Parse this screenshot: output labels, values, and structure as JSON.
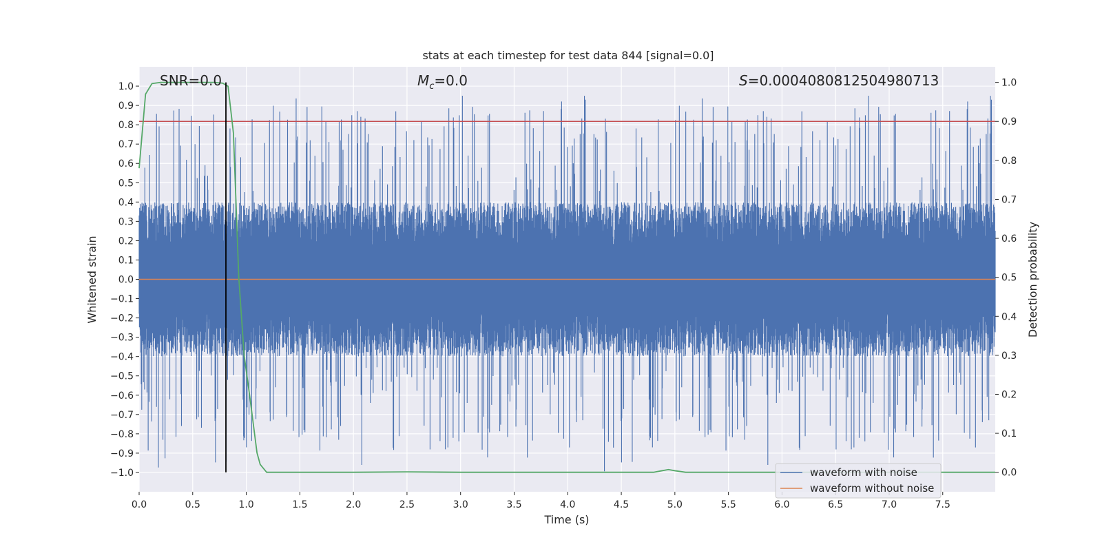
{
  "chart_data": {
    "type": "line",
    "title": "stats at each timestep for test data 844 [signal=0.0]",
    "xlabel": "Time (s)",
    "ylabel": "Whitened strain",
    "y2label": "Detection probability",
    "xlim": [
      0.0,
      7.99
    ],
    "ylim": [
      -1.1,
      1.1
    ],
    "y2lim": [
      -0.05,
      1.04
    ],
    "xticks": [
      0.0,
      0.5,
      1.0,
      1.5,
      2.0,
      2.5,
      3.0,
      3.5,
      4.0,
      4.5,
      5.0,
      5.5,
      6.0,
      6.5,
      7.0,
      7.5
    ],
    "xtick_labels": [
      "0.0",
      "0.5",
      "1.0",
      "1.5",
      "2.0",
      "2.5",
      "3.0",
      "3.5",
      "4.0",
      "4.5",
      "5.0",
      "5.5",
      "6.0",
      "6.5",
      "7.0",
      "7.5"
    ],
    "yticks": [
      1.0,
      0.9,
      0.8,
      0.7,
      0.6,
      0.5,
      0.4,
      0.3,
      0.2,
      0.1,
      0.0,
      -0.1,
      -0.2,
      -0.3,
      -0.4,
      -0.5,
      -0.6,
      -0.7,
      -0.8,
      -0.9,
      -1.0
    ],
    "ytick_labels": [
      "1.0",
      "0.9",
      "0.8",
      "0.7",
      "0.6",
      "0.5",
      "0.4",
      "0.3",
      "0.2",
      "0.1",
      "0.0",
      "−0.1",
      "−0.2",
      "−0.3",
      "−0.4",
      "−0.5",
      "−0.6",
      "−0.7",
      "−0.8",
      "−0.9",
      "−1.0"
    ],
    "y2ticks": [
      1.0,
      0.9,
      0.8,
      0.7,
      0.6,
      0.5,
      0.4,
      0.3,
      0.2,
      0.1,
      0.0
    ],
    "y2tick_labels": [
      "1.0",
      "0.9",
      "0.8",
      "0.7",
      "0.6",
      "0.5",
      "0.4",
      "0.3",
      "0.2",
      "0.1",
      "0.0"
    ],
    "annotations": {
      "snr": "SNR=0.0",
      "mc_symbol": "M",
      "mc_subscript": "c",
      "mc_value": "=0.0",
      "s_symbol": "S",
      "s_value": "=0.0004080812504980713"
    },
    "series": [
      {
        "name": "waveform with noise",
        "color": "#4c72b0",
        "axis": "left",
        "kind": "noise",
        "duration": 7.99,
        "samples": 3600,
        "typical_upper": 0.38,
        "typical_lower": -0.38,
        "peak_max": 0.97,
        "peak_min": -1.0
      },
      {
        "name": "waveform without noise",
        "color": "#dd8452",
        "axis": "left",
        "x": [
          0.0,
          7.99
        ],
        "y": [
          0.0,
          0.0
        ]
      },
      {
        "name": "detection probability",
        "color": "#55a868",
        "axis": "right",
        "x": [
          0.0,
          0.06,
          0.12,
          0.2,
          0.3,
          0.5,
          0.7,
          0.78,
          0.83,
          0.88,
          0.93,
          0.98,
          1.03,
          1.1,
          1.13,
          1.19,
          1.3,
          2.0,
          2.5,
          3.0,
          4.8,
          4.88,
          4.94,
          5.0,
          5.1,
          6.0,
          7.0,
          7.99
        ],
        "y": [
          0.78,
          0.97,
          0.997,
          1.0,
          1.0,
          1.0,
          1.0,
          0.998,
          0.99,
          0.87,
          0.5,
          0.3,
          0.2,
          0.05,
          0.02,
          0.0,
          0.0,
          0.0,
          0.001,
          0.0,
          0.0,
          0.004,
          0.007,
          0.004,
          0.0,
          0.0,
          0.0,
          0.0
        ]
      }
    ],
    "threshold": {
      "axis": "right",
      "value": 0.9,
      "color": "#c44e52"
    },
    "marker": {
      "x": 0.81,
      "color": "#000000"
    },
    "legend": {
      "placement": "lower-right",
      "entries": [
        "waveform with noise",
        "waveform without noise"
      ]
    },
    "grid": true
  }
}
